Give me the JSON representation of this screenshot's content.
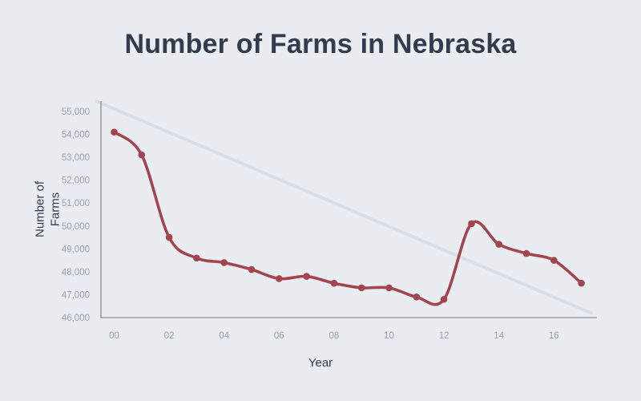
{
  "header": {
    "title": "Number of Farms in Nebraska"
  },
  "colors": {
    "background": "#e9edf2",
    "title_text": "#333c4c",
    "axis_title_text": "#333c4c",
    "tick_text": "#9aa1ab",
    "axis_line": "#878d95",
    "series_line": "#a3454e",
    "marker_fill": "#a3454e",
    "trend_line": "#d8dee7"
  },
  "chart_data": {
    "type": "line",
    "title": "Number of Farms in Nebraska",
    "xlabel": "Year",
    "ylabel": "Number of Farms",
    "grid": false,
    "legend": "none",
    "x": [
      "00",
      "01",
      "02",
      "03",
      "04",
      "05",
      "06",
      "07",
      "08",
      "09",
      "10",
      "11",
      "12",
      "13",
      "14",
      "15",
      "16",
      "17"
    ],
    "x_tick_shown": [
      0,
      2,
      4,
      6,
      8,
      10,
      12,
      14,
      16
    ],
    "series": [
      {
        "name": "Number of Farms",
        "marker": "circle",
        "values": [
          54100,
          53100,
          49500,
          48600,
          48400,
          48100,
          47700,
          47800,
          47500,
          47300,
          47300,
          46900,
          46800,
          50100,
          49200,
          48800,
          48500,
          47500
        ]
      }
    ],
    "trendline": {
      "name": "Trend line",
      "start": {
        "x_index": -0.65,
        "value": 55450
      },
      "end": {
        "x_index": 17.35,
        "value": 46200
      }
    },
    "ylim": [
      46000,
      55000
    ],
    "y_ticks": [
      {
        "value": 46000,
        "label": "46,000"
      },
      {
        "value": 47000,
        "label": "47,000"
      },
      {
        "value": 48000,
        "label": "48,000"
      },
      {
        "value": 49000,
        "label": "49,000"
      },
      {
        "value": 50000,
        "label": "50,000"
      },
      {
        "value": 51000,
        "label": "51,000"
      },
      {
        "value": 52000,
        "label": "52,000"
      },
      {
        "value": 53000,
        "label": "53,000"
      },
      {
        "value": 54000,
        "label": "54,000"
      },
      {
        "value": 55000,
        "label": "55,000"
      }
    ]
  }
}
